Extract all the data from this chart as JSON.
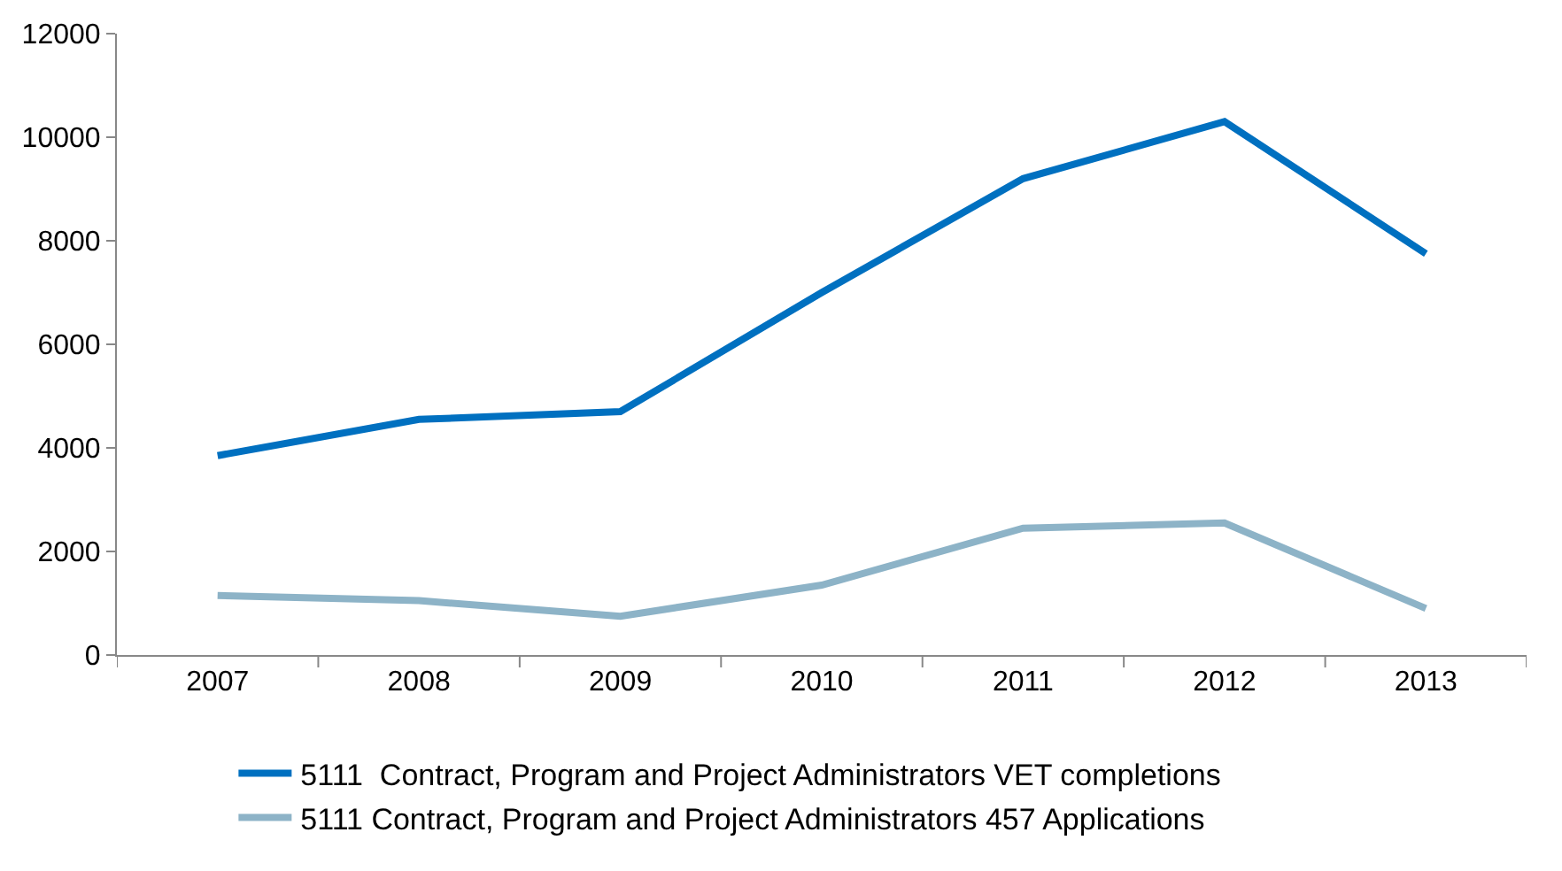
{
  "chart_data": {
    "type": "line",
    "categories": [
      "2007",
      "2008",
      "2009",
      "2010",
      "2011",
      "2012",
      "2013"
    ],
    "series": [
      {
        "name": "5111  Contract, Program and Project Administrators VET completions",
        "color": "#0070c0",
        "values": [
          3850,
          4550,
          4700,
          7000,
          9200,
          10300,
          7750
        ]
      },
      {
        "name": "5111 Contract, Program and Project Administrators 457 Applications",
        "color": "#8db3c7",
        "values": [
          1150,
          1050,
          750,
          1350,
          2450,
          2550,
          900
        ]
      }
    ],
    "ylim": [
      0,
      12000
    ],
    "yticks": [
      0,
      2000,
      4000,
      6000,
      8000,
      10000,
      12000
    ],
    "legend": "bottom",
    "marker": "none",
    "line_style": "solid"
  }
}
